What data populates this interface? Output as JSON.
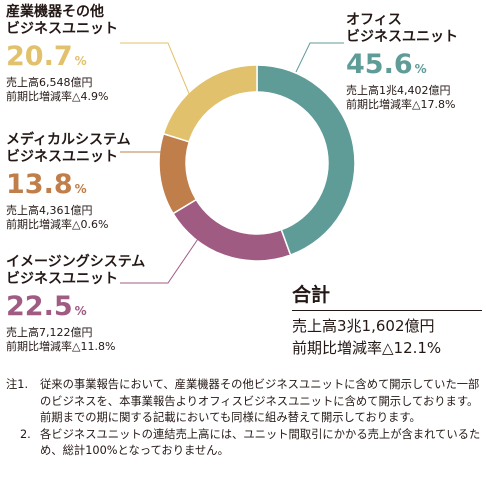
{
  "chart_data": {
    "type": "pie",
    "segments": [
      {
        "key": "office",
        "title_lines": [
          "オフィス",
          "ビジネスユニット"
        ],
        "value": 45.6,
        "unit": "%",
        "sales": "売上高1兆4,402億円",
        "change": "前期比増減率△17.8%",
        "color": "#5f9c97"
      },
      {
        "key": "imaging",
        "title_lines": [
          "イメージングシステム",
          "ビジネスユニット"
        ],
        "value": 22.5,
        "unit": "%",
        "sales": "売上高7,122億円",
        "change": "前期比増減率△11.8%",
        "color": "#a05b83"
      },
      {
        "key": "medical",
        "title_lines": [
          "メディカルシステム",
          "ビジネスユニット"
        ],
        "value": 13.8,
        "unit": "%",
        "sales": "売上高4,361億円",
        "change": "前期比増減率△0.6%",
        "color": "#bf7e4a"
      },
      {
        "key": "industrial",
        "title_lines": [
          "産業機器その他",
          "ビジネスユニット"
        ],
        "value": 20.7,
        "unit": "%",
        "sales": "売上高6,548億円",
        "change": "前期比増減率△4.9%",
        "color": "#e2c16c"
      }
    ],
    "total": {
      "title": "合計",
      "sales": "売上高3兆1,602億円",
      "change": "前期比増減率△12.1%"
    }
  },
  "notes": [
    {
      "label": "注1.",
      "text": "従来の事業報告において、産業機器その他ビジネスユニットに含めて開示していた一部のビジネスを、本事業報告よりオフィスビジネスユニットに含めて開示しております。前期までの期に関する記載においても同様に組み替えて開示しております。"
    },
    {
      "label": "2.",
      "text": "各ビジネスユニットの連結売上高には、ユニット間取引にかかる売上が含まれているため、総計100%となっておりません。"
    }
  ]
}
